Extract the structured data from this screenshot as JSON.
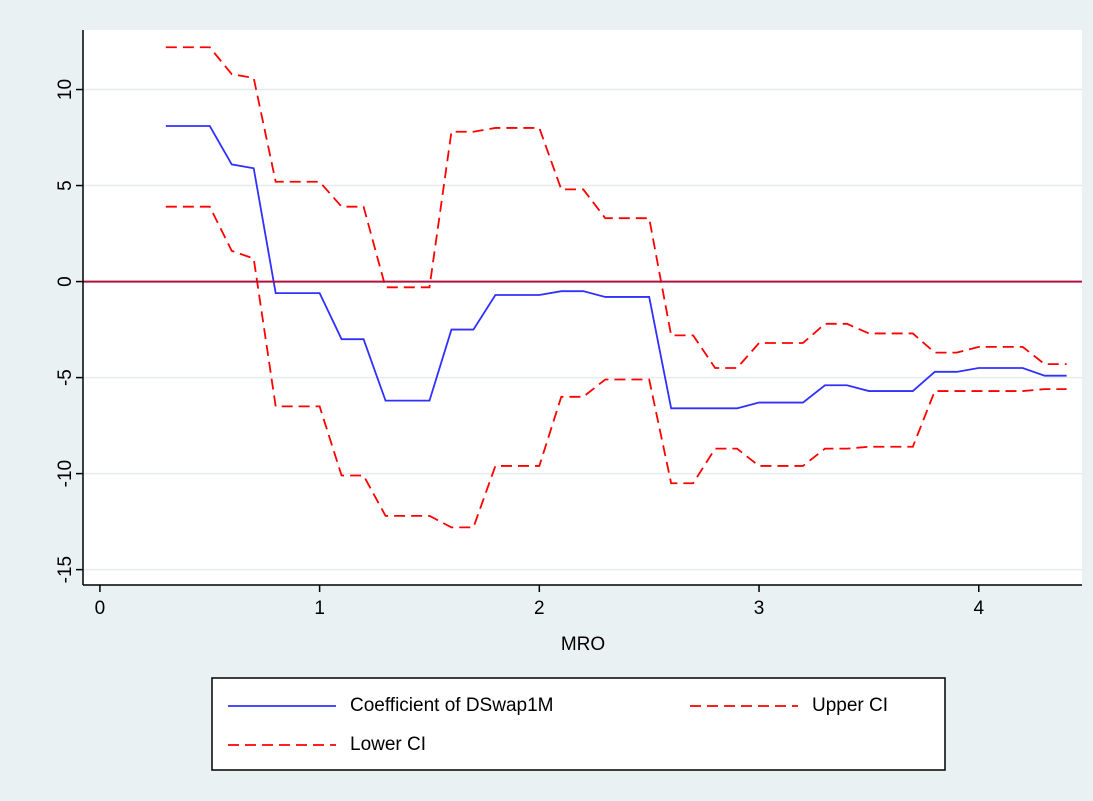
{
  "chart_data": {
    "type": "line",
    "x": [
      0.3,
      0.4,
      0.5,
      0.6,
      0.7,
      0.8,
      0.9,
      1.0,
      1.1,
      1.2,
      1.3,
      1.4,
      1.5,
      1.6,
      1.7,
      1.8,
      1.9,
      2.0,
      2.1,
      2.2,
      2.3,
      2.4,
      2.5,
      2.6,
      2.7,
      2.8,
      2.9,
      3.0,
      3.1,
      3.2,
      3.3,
      3.4,
      3.5,
      3.6,
      3.7,
      3.8,
      3.9,
      4.0,
      4.1,
      4.2,
      4.3,
      4.4
    ],
    "series": [
      {
        "name": "Coefficient of DSwap1M",
        "color": "#3030ff",
        "dashed": false,
        "values": [
          8.1,
          8.1,
          8.1,
          6.1,
          5.9,
          -0.6,
          -0.6,
          -0.6,
          -3.0,
          -3.0,
          -6.2,
          -6.2,
          -6.2,
          -2.5,
          -2.5,
          -0.7,
          -0.7,
          -0.7,
          -0.5,
          -0.5,
          -0.8,
          -0.8,
          -0.8,
          -6.6,
          -6.6,
          -6.6,
          -6.6,
          -6.3,
          -6.3,
          -6.3,
          -5.4,
          -5.4,
          -5.7,
          -5.7,
          -5.7,
          -4.7,
          -4.7,
          -4.5,
          -4.5,
          -4.5,
          -4.9,
          -4.9
        ]
      },
      {
        "name": "Upper CI",
        "color": "#ff0000",
        "dashed": true,
        "values": [
          12.2,
          12.2,
          12.2,
          10.8,
          10.6,
          5.2,
          5.2,
          5.2,
          3.9,
          3.9,
          -0.3,
          -0.3,
          -0.3,
          7.8,
          7.8,
          8.0,
          8.0,
          8.0,
          4.8,
          4.8,
          3.3,
          3.3,
          3.3,
          -2.8,
          -2.8,
          -4.5,
          -4.5,
          -3.2,
          -3.2,
          -3.2,
          -2.2,
          -2.2,
          -2.7,
          -2.7,
          -2.7,
          -3.7,
          -3.7,
          -3.4,
          -3.4,
          -3.4,
          -4.3,
          -4.3
        ]
      },
      {
        "name": "Lower CI",
        "color": "#ff0000",
        "dashed": true,
        "values": [
          3.9,
          3.9,
          3.9,
          1.6,
          1.2,
          -6.5,
          -6.5,
          -6.5,
          -10.1,
          -10.1,
          -12.2,
          -12.2,
          -12.2,
          -12.8,
          -12.8,
          -9.6,
          -9.6,
          -9.6,
          -6.0,
          -6.0,
          -5.1,
          -5.1,
          -5.1,
          -10.5,
          -10.5,
          -8.7,
          -8.7,
          -9.6,
          -9.6,
          -9.6,
          -8.7,
          -8.7,
          -8.6,
          -8.6,
          -8.6,
          -5.7,
          -5.7,
          -5.7,
          -5.7,
          -5.7,
          -5.6,
          -5.6
        ]
      }
    ],
    "x_label": "MRO",
    "xlim": [
      -0.077,
      4.47
    ],
    "xticks": [
      0,
      1,
      2,
      3,
      4
    ],
    "ylim": [
      -15.8,
      13.1
    ],
    "yticks": [
      -15,
      -10,
      -5,
      0,
      5,
      10
    ],
    "grid": true,
    "reference_line": {
      "y": 0,
      "color": "#b0103a"
    },
    "legend": "bottom"
  }
}
